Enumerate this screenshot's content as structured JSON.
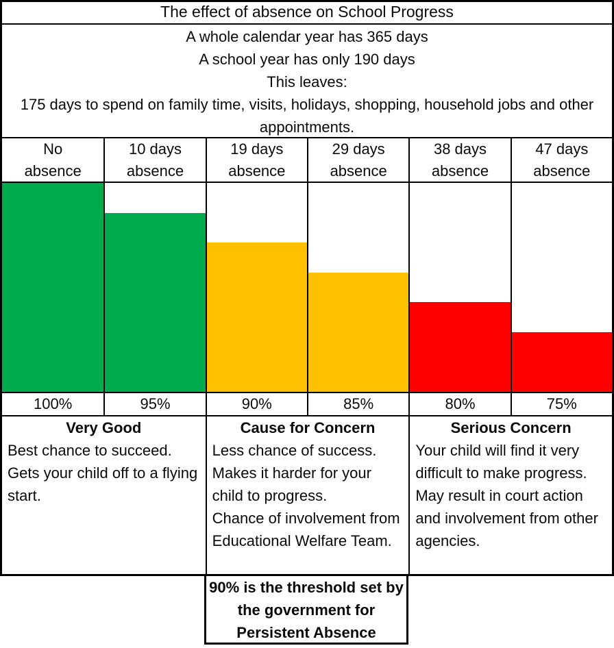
{
  "page": {
    "title": "The effect of absence on School Progress"
  },
  "intro": {
    "lines": [
      "A whole calendar year has 365 days",
      "A school year has only 190 days",
      "This leaves:",
      "175 days to spend on family time, visits, holidays, shopping, household jobs and other appointments."
    ]
  },
  "chart_data": {
    "type": "bar",
    "title": "The effect of absence on School Progress",
    "categories": [
      "No absence",
      "10 days absence",
      "19 days absence",
      "29 days absence",
      "38 days absence",
      "47 days absence"
    ],
    "values": [
      100,
      95,
      90,
      85,
      80,
      75
    ],
    "value_labels": [
      "100%",
      "95%",
      "90%",
      "85%",
      "80%",
      "75%"
    ],
    "bar_colors": [
      "#00AB4E",
      "#00AB4E",
      "#FFC000",
      "#FFC000",
      "#FF0000",
      "#FF0000"
    ],
    "status_colors": {
      "very_good": "#00AB4E",
      "cause_for_concern": "#FFC000",
      "serious_concern": "#FF0000"
    },
    "ylim": [
      65,
      100
    ],
    "grid": false,
    "legend": false,
    "annotations": [
      "90% is the threshold set by the government for Persistent Absence"
    ]
  },
  "sections": [
    {
      "heading": "Very Good",
      "lines": [
        "Best chance to succeed.",
        "Gets your child off to a flying start."
      ]
    },
    {
      "heading": "Cause for Concern",
      "lines": [
        "Less chance of success.",
        "Makes it harder for your child to progress.",
        "Chance of involvement from Educational Welfare Team."
      ]
    },
    {
      "heading": "Serious Concern",
      "lines": [
        "Your child will find it very difficult to make progress.",
        "May result in court action and involvement from other agencies."
      ]
    }
  ],
  "footnote": "90% is the threshold set by the government for Persistent Absence"
}
